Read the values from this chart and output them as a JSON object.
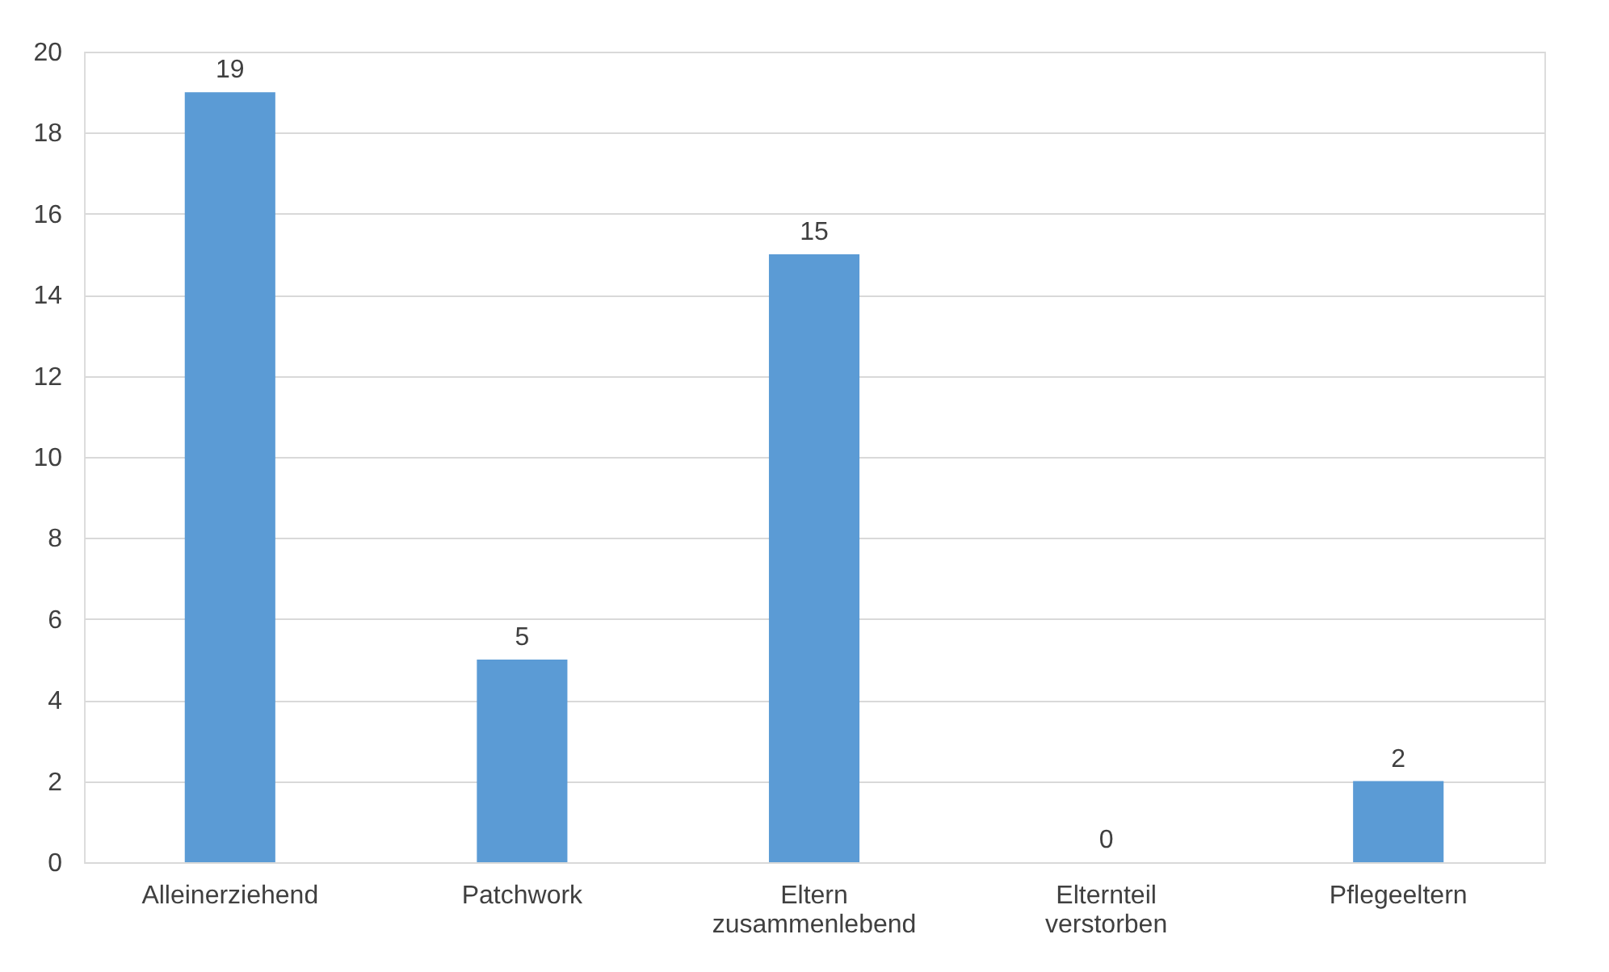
{
  "chart_data": {
    "type": "bar",
    "categories": [
      "Alleinerziehend",
      "Patchwork",
      "Eltern\nzusammenlebend",
      "Elternteil\nverstorben",
      "Pflegeeltern"
    ],
    "values": [
      19,
      5,
      15,
      0,
      2
    ],
    "color": "#5b9bd5",
    "ylim": [
      0,
      20
    ],
    "yticks": [
      0,
      2,
      4,
      6,
      8,
      10,
      12,
      14,
      16,
      18,
      20
    ],
    "grid": "y",
    "data_labels": true
  }
}
